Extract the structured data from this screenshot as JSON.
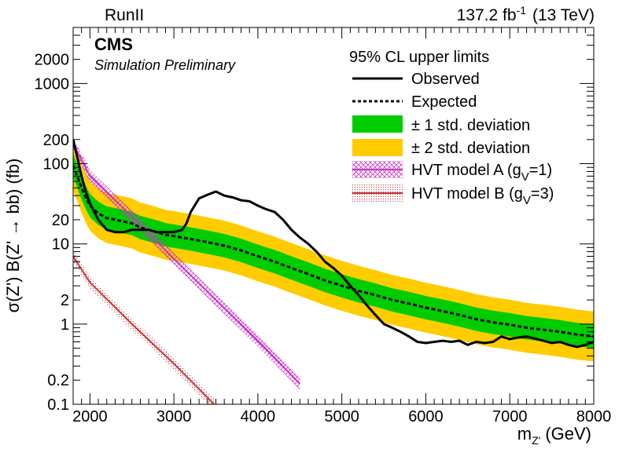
{
  "header": {
    "left": "RunII",
    "right": "137.2 fb",
    "right_sup": "-1",
    "right_tail": "(13 TeV)"
  },
  "labels": {
    "cms": "CMS",
    "preliminary": "Simulation Preliminary"
  },
  "chart_data": {
    "type": "line",
    "xlabel": {
      "main": "m",
      "sub": "Z'",
      "tail": "(GeV)"
    },
    "ylabel": "σ(Z') B(Z' → bb) (fb)",
    "xlim": [
      1800,
      8000
    ],
    "ylim": [
      0.1,
      5000
    ],
    "yscale": "log",
    "grid": false,
    "legend_position": "top-right",
    "x_ticks": [
      2000,
      3000,
      4000,
      5000,
      6000,
      7000,
      8000
    ],
    "x_tick_labels": [
      "2000",
      "3000",
      "4000",
      "5000",
      "6000",
      "7000",
      "8000"
    ],
    "y_ticks": [
      0.1,
      0.2,
      1,
      2,
      10,
      20,
      100,
      200,
      1000,
      2000
    ],
    "y_tick_labels": [
      "0.1",
      "0.2",
      "1",
      "2",
      "10",
      "20",
      "100",
      "200",
      "1000",
      "2000"
    ],
    "legend": {
      "title": "95% CL upper limits",
      "observed": "Observed",
      "expected": "Expected",
      "band1": "± 1 std. deviation",
      "band2": "± 2 std. deviation",
      "hvt_a": {
        "text": "HVT model A (g",
        "sub": "V",
        "tail": "=1)"
      },
      "hvt_b": {
        "text": "HVT model B (g",
        "sub": "V",
        "tail": "=3)"
      }
    },
    "colors": {
      "band1": "#00cc00",
      "band2": "#ffcc00",
      "observed": "#000000",
      "expected": "#000000",
      "hvt_a": "#cc33cc",
      "hvt_b": "#cc3333"
    },
    "series": [
      {
        "name": "Observed",
        "x": [
          1800,
          1850,
          1900,
          1950,
          2000,
          2100,
          2200,
          2300,
          2400,
          2500,
          2600,
          2700,
          2800,
          2900,
          3000,
          3100,
          3150,
          3200,
          3300,
          3400,
          3500,
          3600,
          3700,
          3800,
          3900,
          4000,
          4100,
          4200,
          4300,
          4400,
          4500,
          4600,
          4700,
          4800,
          4900,
          5000,
          5100,
          5200,
          5300,
          5400,
          5500,
          5600,
          5700,
          5800,
          5900,
          6000,
          6100,
          6200,
          6300,
          6400,
          6500,
          6600,
          6700,
          6800,
          6900,
          7000,
          7100,
          7200,
          7300,
          7400,
          7500,
          7600,
          7700,
          7800,
          7900,
          8000
        ],
        "values": [
          200,
          120,
          70,
          45,
          32,
          20,
          15,
          14,
          14,
          15,
          15,
          15,
          14,
          14,
          14,
          15,
          18,
          25,
          37,
          41,
          45,
          40,
          38,
          35,
          34,
          30,
          27,
          25,
          20,
          15,
          12,
          10,
          8,
          6,
          5,
          4,
          3,
          2.3,
          1.7,
          1.3,
          1,
          0.9,
          0.8,
          0.7,
          0.6,
          0.58,
          0.6,
          0.62,
          0.6,
          0.62,
          0.55,
          0.6,
          0.58,
          0.6,
          0.7,
          0.65,
          0.68,
          0.7,
          0.66,
          0.62,
          0.58,
          0.6,
          0.55,
          0.52,
          0.55,
          0.6
        ]
      },
      {
        "name": "Expected",
        "x": [
          1800,
          1850,
          1900,
          1950,
          2000,
          2100,
          2200,
          2300,
          2400,
          2500,
          2600,
          2700,
          2800,
          2900,
          3000,
          3200,
          3400,
          3600,
          3800,
          4000,
          4200,
          4400,
          4600,
          4800,
          5000,
          5200,
          5400,
          5600,
          5800,
          6000,
          6200,
          6400,
          6600,
          6800,
          7000,
          7200,
          7400,
          7600,
          7800,
          8000
        ],
        "values": [
          95,
          70,
          50,
          38,
          30,
          24,
          21,
          20,
          19,
          18,
          16,
          15,
          14,
          13,
          12.5,
          11.5,
          10.5,
          9.5,
          8.3,
          7.0,
          6.0,
          5.0,
          4.2,
          3.5,
          3.0,
          2.6,
          2.3,
          2.0,
          1.8,
          1.6,
          1.45,
          1.3,
          1.15,
          1.05,
          0.98,
          0.9,
          0.85,
          0.8,
          0.74,
          0.7
        ]
      }
    ],
    "band1_factor": 1.4,
    "band2_factor": 2.05,
    "hvt_a": {
      "x": [
        1800,
        2000,
        2500,
        3000,
        3500,
        4000,
        4500
      ],
      "values": [
        180,
        70,
        22,
        6.5,
        2.0,
        0.62,
        0.18
      ],
      "x_end": 4500
    },
    "hvt_b": {
      "x": [
        1800,
        2000,
        2500,
        3000,
        3500
      ],
      "values": [
        7.0,
        3.3,
        1.0,
        0.32,
        0.095
      ],
      "x_end": 3500
    }
  }
}
